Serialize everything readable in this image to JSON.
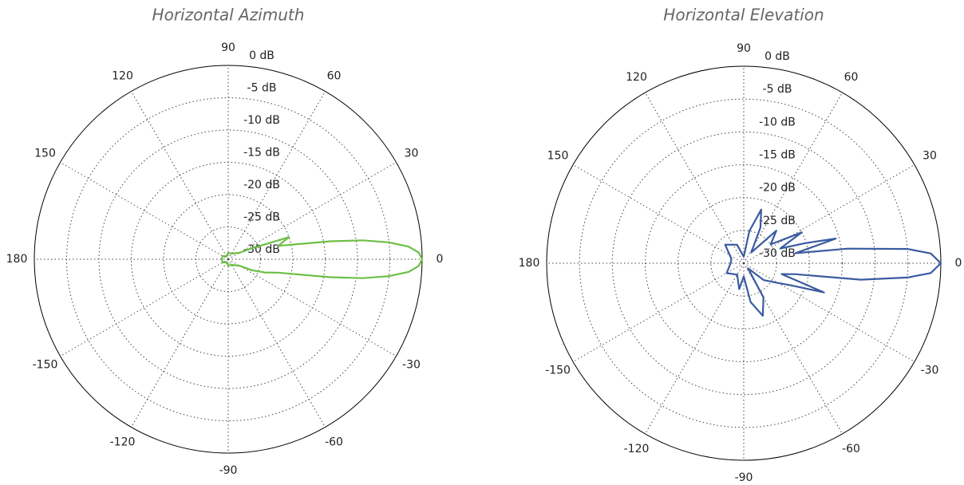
{
  "chart_data": [
    {
      "type": "polar",
      "title": "Horizontal Azimuth",
      "color": "#6cbf45",
      "grid": true,
      "x": [
        -180,
        -150,
        -120,
        -90,
        -60,
        -30,
        -25,
        -20,
        -15,
        -10,
        -8,
        -6,
        -4,
        -2,
        0,
        2,
        4,
        6,
        8,
        10,
        15,
        20,
        25,
        30,
        60,
        90,
        120,
        150,
        180
      ],
      "values": [
        -29,
        -29,
        -29.5,
        -29,
        -29,
        -28,
        -26,
        -24,
        -22,
        -14,
        -9,
        -5,
        -2,
        -0.5,
        0,
        -0.5,
        -2,
        -5,
        -9,
        -14,
        -22,
        -20,
        -26,
        -28,
        -29,
        -29,
        -29.5,
        -29,
        -29
      ],
      "xticks": [
        0,
        30,
        60,
        90,
        120,
        150,
        180,
        -150,
        -120,
        -90,
        -60,
        -30
      ],
      "ylim": [
        -30,
        0
      ],
      "yticks": [
        {
          "value": -30,
          "label": "-30 dB"
        },
        {
          "value": -25,
          "label": "-25 dB"
        },
        {
          "value": -20,
          "label": "-20 dB"
        },
        {
          "value": -15,
          "label": "-15 dB"
        },
        {
          "value": -10,
          "label": "-10 dB"
        },
        {
          "value": -5,
          "label": "-5 dB"
        },
        {
          "value": 0,
          "label": "0 dB"
        }
      ]
    },
    {
      "type": "polar",
      "title": "Horizontal Elevation",
      "color": "#3a5ba0",
      "grid": true,
      "x": [
        -180,
        -150,
        -120,
        -100,
        -90,
        -80,
        -70,
        -60,
        -50,
        -40,
        -30,
        -25,
        -20,
        -16,
        -12,
        -8,
        -5,
        -3,
        0,
        3,
        5,
        8,
        11,
        15,
        18,
        22,
        28,
        35,
        45,
        55,
        65,
        72,
        80,
        90,
        110,
        135,
        160,
        180
      ],
      "values": [
        -28,
        -27,
        -28,
        -26,
        -28,
        -24,
        -21.5,
        -24,
        -29,
        -26,
        -24,
        -22,
        -17,
        -24,
        -22,
        -12,
        -5,
        -1.5,
        0,
        -1.5,
        -5,
        -14,
        -22,
        -15.5,
        -20,
        -24,
        -20,
        -25,
        -23,
        -28,
        -24,
        -21.4,
        -25,
        -29,
        -27,
        -26,
        -28,
        -28
      ],
      "xticks": [
        0,
        30,
        60,
        90,
        120,
        150,
        180,
        -150,
        -120,
        -90,
        -60,
        -30
      ],
      "ylim": [
        -30,
        0
      ],
      "yticks": [
        {
          "value": -30,
          "label": "-30 dB"
        },
        {
          "value": -25,
          "label": "-25 dB"
        },
        {
          "value": -20,
          "label": "-20 dB"
        },
        {
          "value": -15,
          "label": "-15 dB"
        },
        {
          "value": -10,
          "label": "-10 dB"
        },
        {
          "value": -5,
          "label": "-5 dB"
        },
        {
          "value": 0,
          "label": "0 dB"
        }
      ]
    }
  ]
}
